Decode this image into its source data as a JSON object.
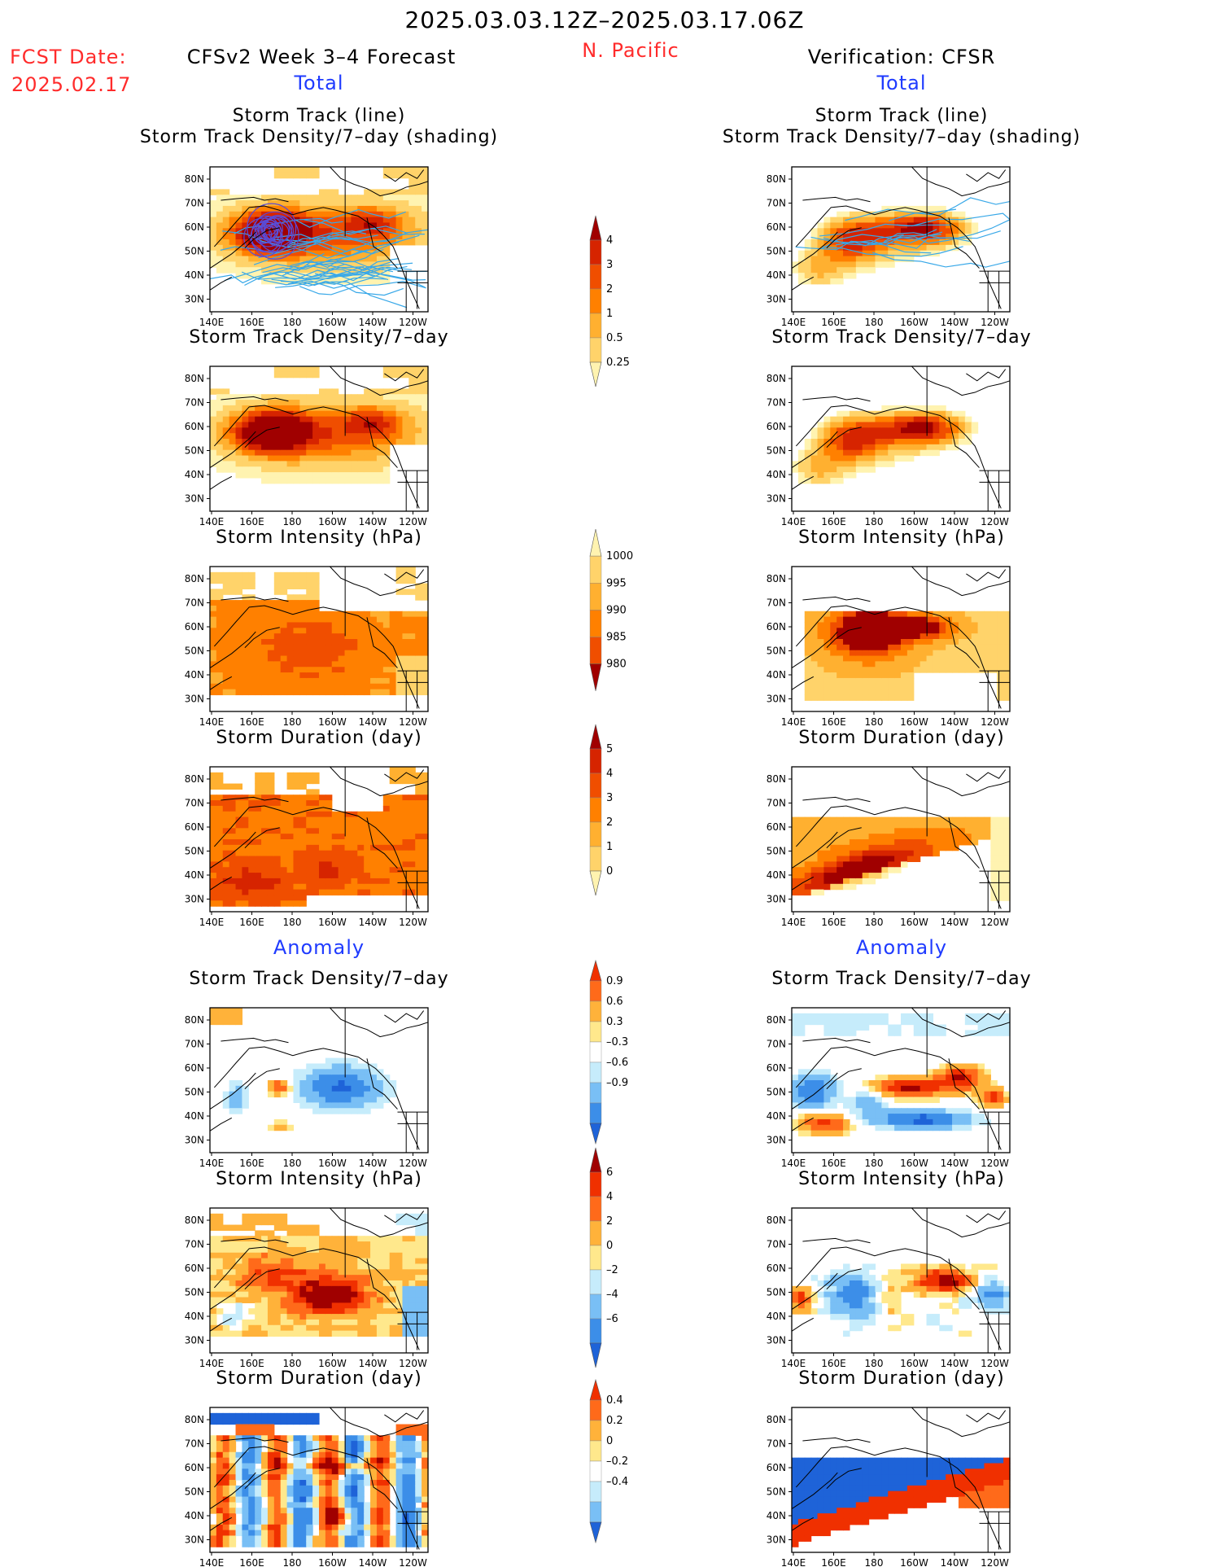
{
  "header": {
    "date_range": "2025.03.03.12Z–2025.03.17.06Z",
    "region": "N. Pacific",
    "fcst_label": "FCST Date:",
    "fcst_date": "2025.02.17",
    "forecast_title": "CFSv2 Week 3–4 Forecast",
    "verification_title": "Verification: CFSR",
    "total_label": "Total",
    "anomaly_label": "Anomaly"
  },
  "panel_titles": {
    "track_line": "Storm Track (line)",
    "track_shading": "Storm Track Density/7–day (shading)",
    "density": "Storm Track Density/7–day",
    "intensity": "Storm Intensity (hPa)",
    "duration": "Storm Duration (day)"
  },
  "axes": {
    "lat_labels": [
      "80N",
      "70N",
      "60N",
      "50N",
      "40N",
      "30N"
    ],
    "lon_labels": [
      "140E",
      "160E",
      "180",
      "160W",
      "140W",
      "120W"
    ]
  },
  "colorbars": {
    "density_total": [
      "4",
      "3",
      "2",
      "1",
      "0.5",
      "0.25"
    ],
    "intensity_total": [
      "1000",
      "995",
      "990",
      "985",
      "980"
    ],
    "duration_total": [
      "5",
      "4",
      "3",
      "2",
      "1",
      "0"
    ],
    "density_anom": [
      "0.9",
      "0.6",
      "0.3",
      "–0.3",
      "–0.6",
      "–0.9"
    ],
    "intensity_anom": [
      "6",
      "4",
      "2",
      "0",
      "–2",
      "–4",
      "–6"
    ],
    "duration_anom": [
      "0.4",
      "0.2",
      "0",
      "–0.2",
      "–0.4"
    ]
  },
  "colors": {
    "seq_total": [
      "#fff3b0",
      "#ffd36a",
      "#ffb030",
      "#ff8000",
      "#f04e00",
      "#d62400",
      "#a00000"
    ],
    "intensity_total": [
      "#fff3b0",
      "#ffd36a",
      "#ffb030",
      "#ff8000",
      "#f04e00",
      "#a00000"
    ],
    "div": [
      "#1e63d8",
      "#3c8ee8",
      "#79bff5",
      "#c6ecfb",
      "#ffffff",
      "#ffe88c",
      "#ffb23a",
      "#ff6a1a",
      "#f03000",
      "#a00000"
    ]
  }
}
